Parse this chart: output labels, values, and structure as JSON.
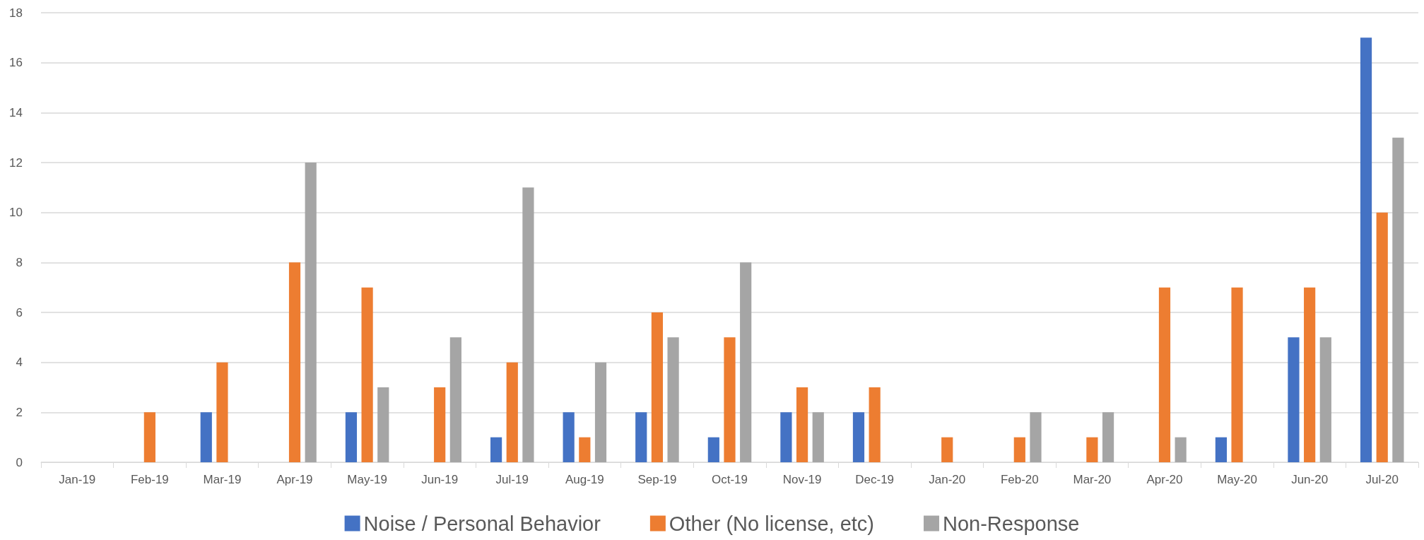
{
  "chart_data": {
    "type": "bar",
    "categories": [
      "Jan-19",
      "Feb-19",
      "Mar-19",
      "Apr-19",
      "May-19",
      "Jun-19",
      "Jul-19",
      "Aug-19",
      "Sep-19",
      "Oct-19",
      "Nov-19",
      "Dec-19",
      "Jan-20",
      "Feb-20",
      "Mar-20",
      "Apr-20",
      "May-20",
      "Jun-20",
      "Jul-20"
    ],
    "series": [
      {
        "name": "Noise / Personal Behavior",
        "color": "#4472c4",
        "values": [
          0,
          0,
          2,
          0,
          2,
          0,
          1,
          2,
          2,
          1,
          2,
          2,
          0,
          0,
          0,
          0,
          1,
          5,
          17
        ]
      },
      {
        "name": "Other (No license, etc)",
        "color": "#ed7d31",
        "values": [
          0,
          2,
          4,
          8,
          7,
          3,
          4,
          1,
          6,
          5,
          3,
          3,
          1,
          1,
          1,
          7,
          7,
          7,
          10
        ]
      },
      {
        "name": "Non-Response",
        "color": "#a5a5a5",
        "values": [
          0,
          0,
          0,
          12,
          3,
          5,
          11,
          4,
          5,
          8,
          2,
          0,
          0,
          2,
          2,
          1,
          0,
          5,
          13
        ]
      }
    ],
    "ylim": [
      0,
      18
    ],
    "yticks": [
      0,
      2,
      4,
      6,
      8,
      10,
      12,
      14,
      16,
      18
    ],
    "grid": "y",
    "legend": "bottom"
  }
}
